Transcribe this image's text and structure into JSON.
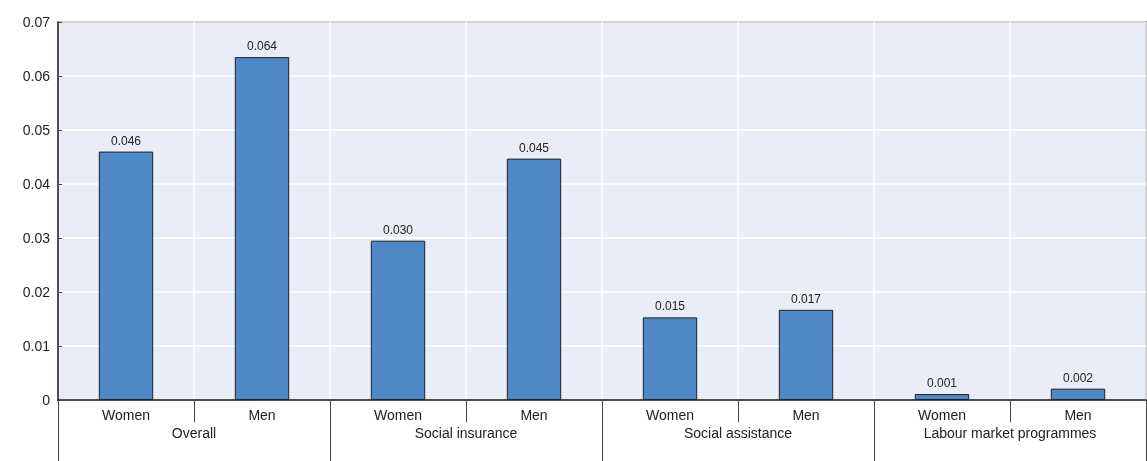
{
  "chart_data": {
    "type": "bar",
    "categories": [
      "Women",
      "Men",
      "Women",
      "Men",
      "Women",
      "Men",
      "Women",
      "Men"
    ],
    "values": [
      0.046,
      0.0635,
      0.0295,
      0.0447,
      0.0153,
      0.0167,
      0.0011,
      0.0021
    ],
    "value_labels": [
      "0.046",
      "0.064",
      "0.030",
      "0.045",
      "0.015",
      "0.017",
      "0.001",
      "0.002"
    ],
    "color": "#4e88c7",
    "annotations": [
      "Overall",
      "Social insurance",
      "Social assistance",
      "Labour market programmes"
    ],
    "ylim": [
      0,
      0.07
    ],
    "yticks": [
      0,
      0.01,
      0.02,
      0.03,
      0.04,
      0.05,
      0.06,
      0.07
    ],
    "grid": true
  }
}
